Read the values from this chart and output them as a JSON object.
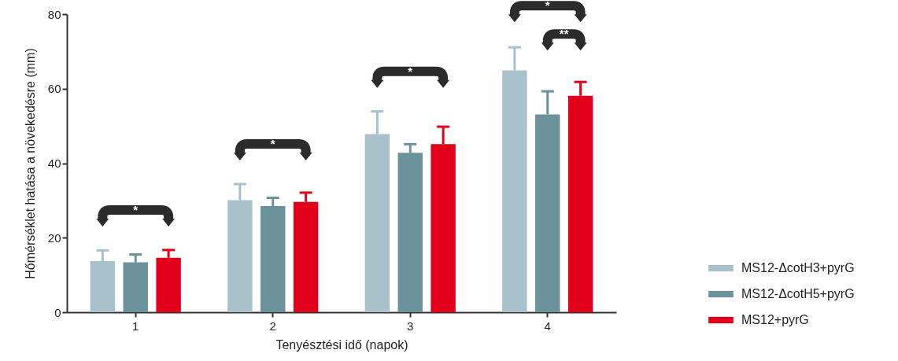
{
  "chart_data": {
    "type": "bar",
    "xlabel": "Tenyésztési idő (napok)",
    "ylabel": "Hőmérséklet hatása a növekedésre (mm)",
    "categories": [
      "1",
      "2",
      "3",
      "4"
    ],
    "series": [
      {
        "name": "MS12-ΔcotH3+pyrG",
        "color": "#a9c1ca",
        "values": [
          13.7,
          30.1,
          47.8,
          64.9
        ],
        "errors": [
          [
            13.7,
            16.6
          ],
          [
            30.1,
            34.4
          ],
          [
            47.8,
            53.9
          ],
          [
            64.9,
            71.1
          ]
        ]
      },
      {
        "name": "MS12-ΔcotH5+pyrG",
        "color": "#6c929c",
        "values": [
          13.4,
          28.5,
          42.8,
          53.1
        ],
        "errors": [
          [
            13.4,
            15.5
          ],
          [
            28.5,
            30.7
          ],
          [
            42.8,
            45.1
          ],
          [
            53.1,
            59.3
          ]
        ]
      },
      {
        "name": "MS12+pyrG",
        "color": "#e3001b",
        "values": [
          14.6,
          29.6,
          45.1,
          58.1
        ],
        "errors": [
          [
            14.6,
            16.7
          ],
          [
            29.6,
            32.1
          ],
          [
            45.1,
            49.8
          ],
          [
            58.1,
            61.8
          ]
        ]
      }
    ],
    "ylim": [
      0,
      80
    ],
    "yticks": [
      0,
      20,
      40,
      60,
      80
    ],
    "grid": false,
    "legend": "bottom right",
    "annotations": [
      "*",
      "*",
      "*",
      "*",
      "**"
    ]
  }
}
